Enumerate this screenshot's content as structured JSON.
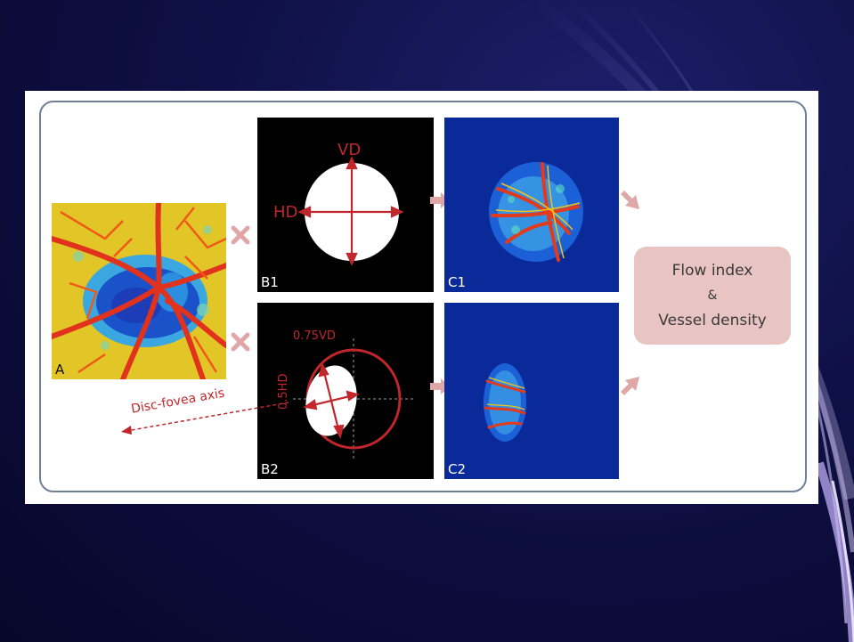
{
  "panels": {
    "a_label": "A",
    "b1_label": "B1",
    "b2_label": "B2",
    "c1_label": "C1",
    "c2_label": "C2"
  },
  "annotations": {
    "vd": "VD",
    "hd": "HD",
    "vd75": "0.75VD",
    "hd50": "0.5HD",
    "disc_fovea_axis": "Disc-fovea axis"
  },
  "result_box": {
    "line1": "Flow index",
    "line2": "&",
    "line3": "Vessel density"
  },
  "colors": {
    "background": "#0f1046",
    "annotation_red": "#c0262b",
    "arrow_pink": "#dfa8a6",
    "panel_blue": "#0b2a9a",
    "box_fill": "#e8c4c2",
    "frame": "#6f7f95"
  }
}
